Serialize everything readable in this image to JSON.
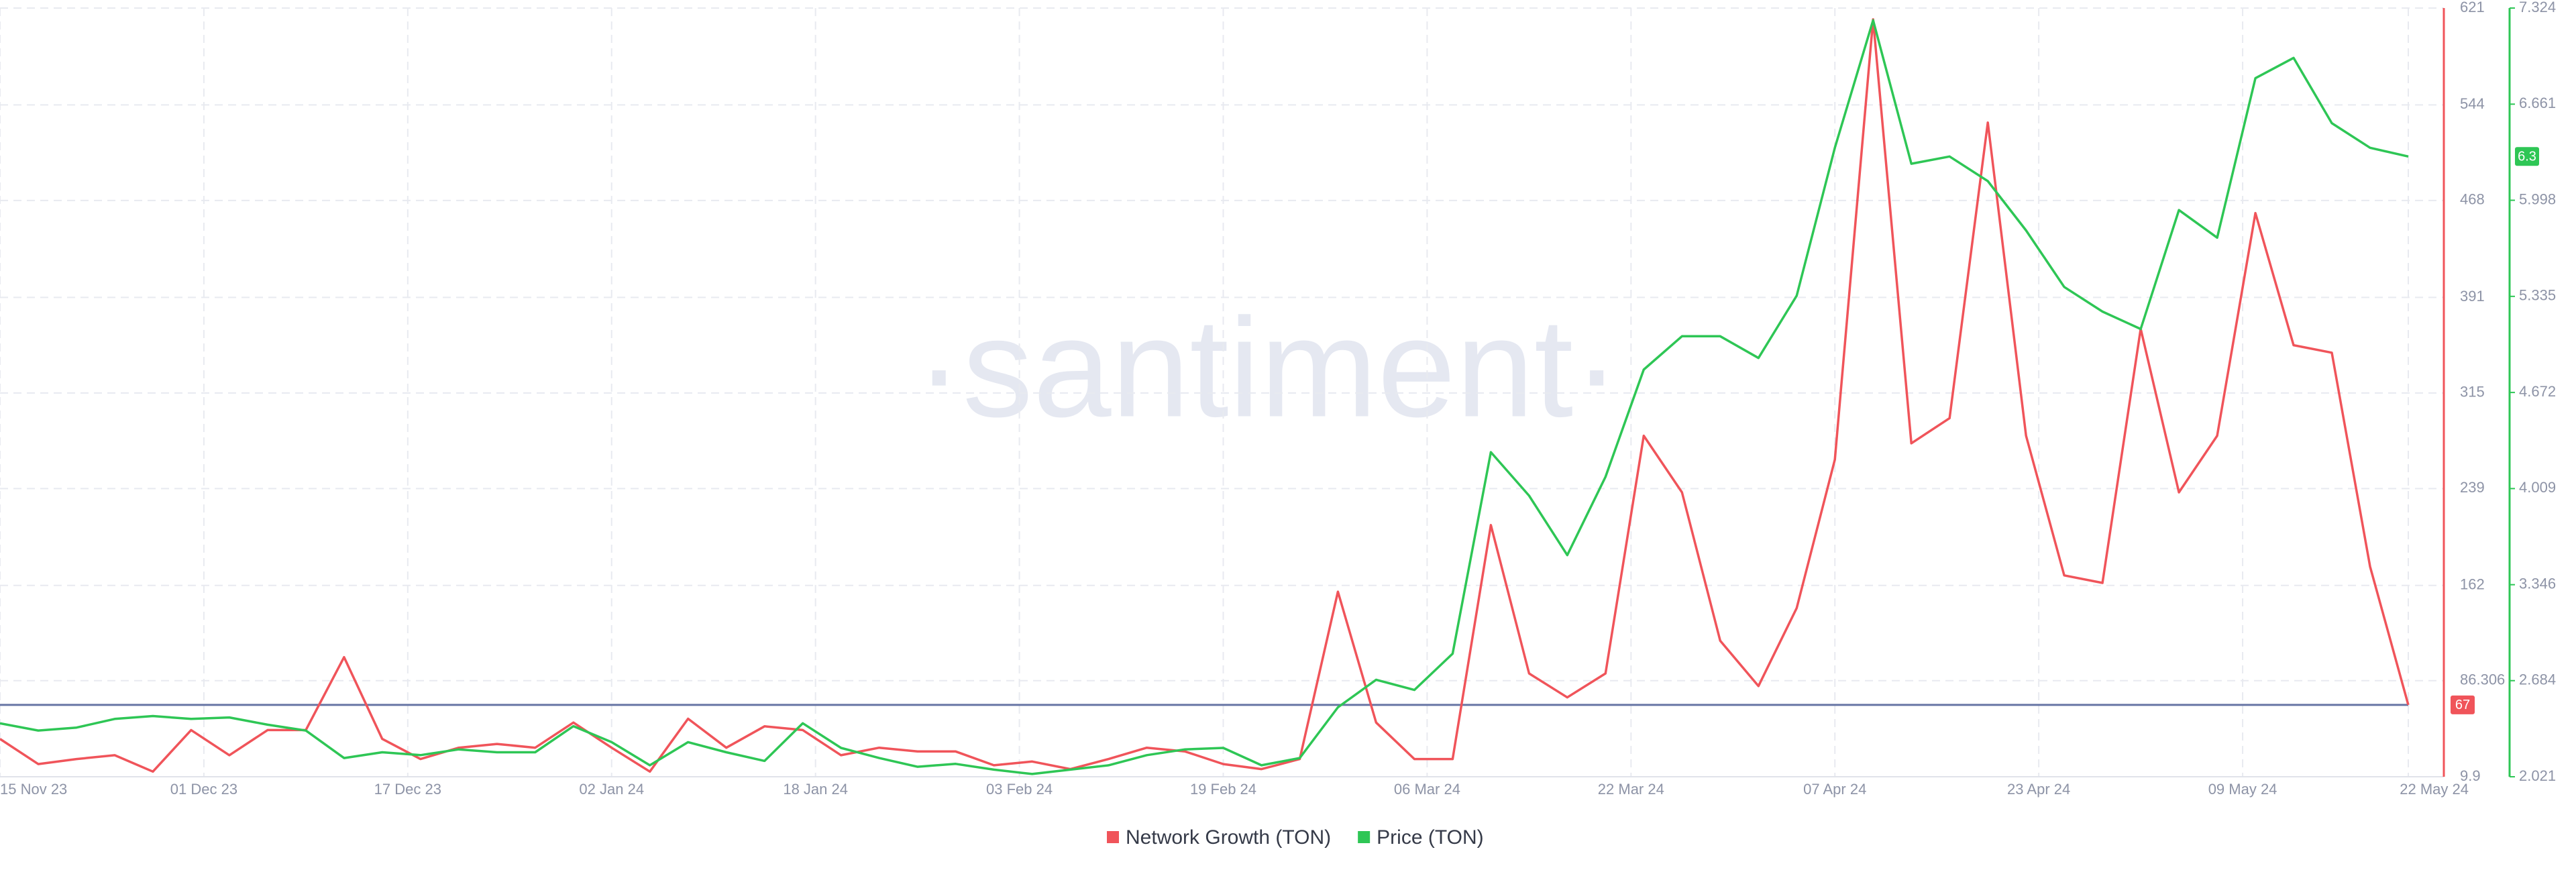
{
  "chart_data": {
    "type": "line",
    "watermark": "·santiment·",
    "x": [
      "2023-11-15",
      "2023-11-18",
      "2023-11-21",
      "2023-11-24",
      "2023-11-27",
      "2023-11-30",
      "2023-12-03",
      "2023-12-06",
      "2023-12-09",
      "2023-12-12",
      "2023-12-15",
      "2023-12-18",
      "2023-12-21",
      "2023-12-24",
      "2023-12-27",
      "2023-12-30",
      "2024-01-02",
      "2024-01-05",
      "2024-01-08",
      "2024-01-11",
      "2024-01-14",
      "2024-01-17",
      "2024-01-20",
      "2024-01-23",
      "2024-01-26",
      "2024-01-29",
      "2024-02-01",
      "2024-02-04",
      "2024-02-07",
      "2024-02-10",
      "2024-02-13",
      "2024-02-16",
      "2024-02-19",
      "2024-02-22",
      "2024-02-25",
      "2024-02-28",
      "2024-03-02",
      "2024-03-05",
      "2024-03-08",
      "2024-03-11",
      "2024-03-14",
      "2024-03-17",
      "2024-03-20",
      "2024-03-23",
      "2024-03-26",
      "2024-03-29",
      "2024-04-01",
      "2024-04-04",
      "2024-04-07",
      "2024-04-10",
      "2024-04-13",
      "2024-04-16",
      "2024-04-19",
      "2024-04-22",
      "2024-04-25",
      "2024-04-28",
      "2024-05-01",
      "2024-05-04",
      "2024-05-07",
      "2024-05-10",
      "2024-05-13",
      "2024-05-16",
      "2024-05-19",
      "2024-05-22"
    ],
    "xlim": [
      "2023-11-15",
      "2024-05-22"
    ],
    "xticks": [
      {
        "value": "2023-11-15",
        "label": "15 Nov 23"
      },
      {
        "value": "2023-12-01",
        "label": "01 Dec 23"
      },
      {
        "value": "2023-12-17",
        "label": "17 Dec 23"
      },
      {
        "value": "2024-01-02",
        "label": "02 Jan 24"
      },
      {
        "value": "2024-01-18",
        "label": "18 Jan 24"
      },
      {
        "value": "2024-02-03",
        "label": "03 Feb 24"
      },
      {
        "value": "2024-02-19",
        "label": "19 Feb 24"
      },
      {
        "value": "2024-03-06",
        "label": "06 Mar 24"
      },
      {
        "value": "2024-03-22",
        "label": "22 Mar 24"
      },
      {
        "value": "2024-04-07",
        "label": "07 Apr 24"
      },
      {
        "value": "2024-04-23",
        "label": "23 Apr 24"
      },
      {
        "value": "2024-05-09",
        "label": "09 May 24"
      },
      {
        "value": "2024-05-22",
        "label": "22 May 24"
      }
    ],
    "ylim": [
      9.9,
      621
    ],
    "yticks": [
      9.9,
      86.306,
      162,
      239,
      315,
      391,
      468,
      544,
      621
    ],
    "y2lim": [
      2.021,
      7.324
    ],
    "y2ticks": [
      2.021,
      2.684,
      3.346,
      4.009,
      4.672,
      5.335,
      5.998,
      6.661,
      7.324
    ],
    "grid": true,
    "legend": "bottom",
    "series": [
      {
        "name": "Network Growth (TON)",
        "color": "#f0545a",
        "values": [
          40,
          20,
          24,
          27,
          14,
          47,
          27,
          47,
          47,
          105,
          40,
          24,
          33,
          36,
          33,
          53,
          33,
          14,
          56,
          33,
          50,
          47,
          27,
          33,
          30,
          30,
          19,
          22,
          16,
          24,
          33,
          30,
          20,
          16,
          24,
          157,
          53,
          24,
          24,
          210,
          92,
          73,
          92,
          281,
          236,
          118,
          82,
          144,
          262,
          612,
          275,
          295,
          530,
          281,
          170,
          164,
          366,
          236,
          281,
          458,
          353,
          347,
          177,
          67
        ]
      },
      {
        "name": "Price (TON)",
        "color": "#2ec655",
        "axis": "y2",
        "values": [
          2.39,
          2.34,
          2.36,
          2.42,
          2.44,
          2.42,
          2.43,
          2.38,
          2.34,
          2.15,
          2.19,
          2.17,
          2.21,
          2.19,
          2.19,
          2.37,
          2.26,
          2.1,
          2.26,
          2.19,
          2.13,
          2.39,
          2.22,
          2.15,
          2.09,
          2.11,
          2.07,
          2.04,
          2.07,
          2.1,
          2.17,
          2.21,
          2.22,
          2.1,
          2.15,
          2.5,
          2.69,
          2.62,
          2.87,
          4.26,
          3.96,
          3.55,
          4.09,
          4.83,
          5.06,
          5.06,
          4.91,
          5.34,
          6.36,
          7.24,
          6.25,
          6.3,
          6.13,
          5.79,
          5.4,
          5.23,
          5.11,
          5.93,
          5.74,
          6.84,
          6.98,
          6.53,
          6.36,
          6.3
        ]
      }
    ]
  }
}
